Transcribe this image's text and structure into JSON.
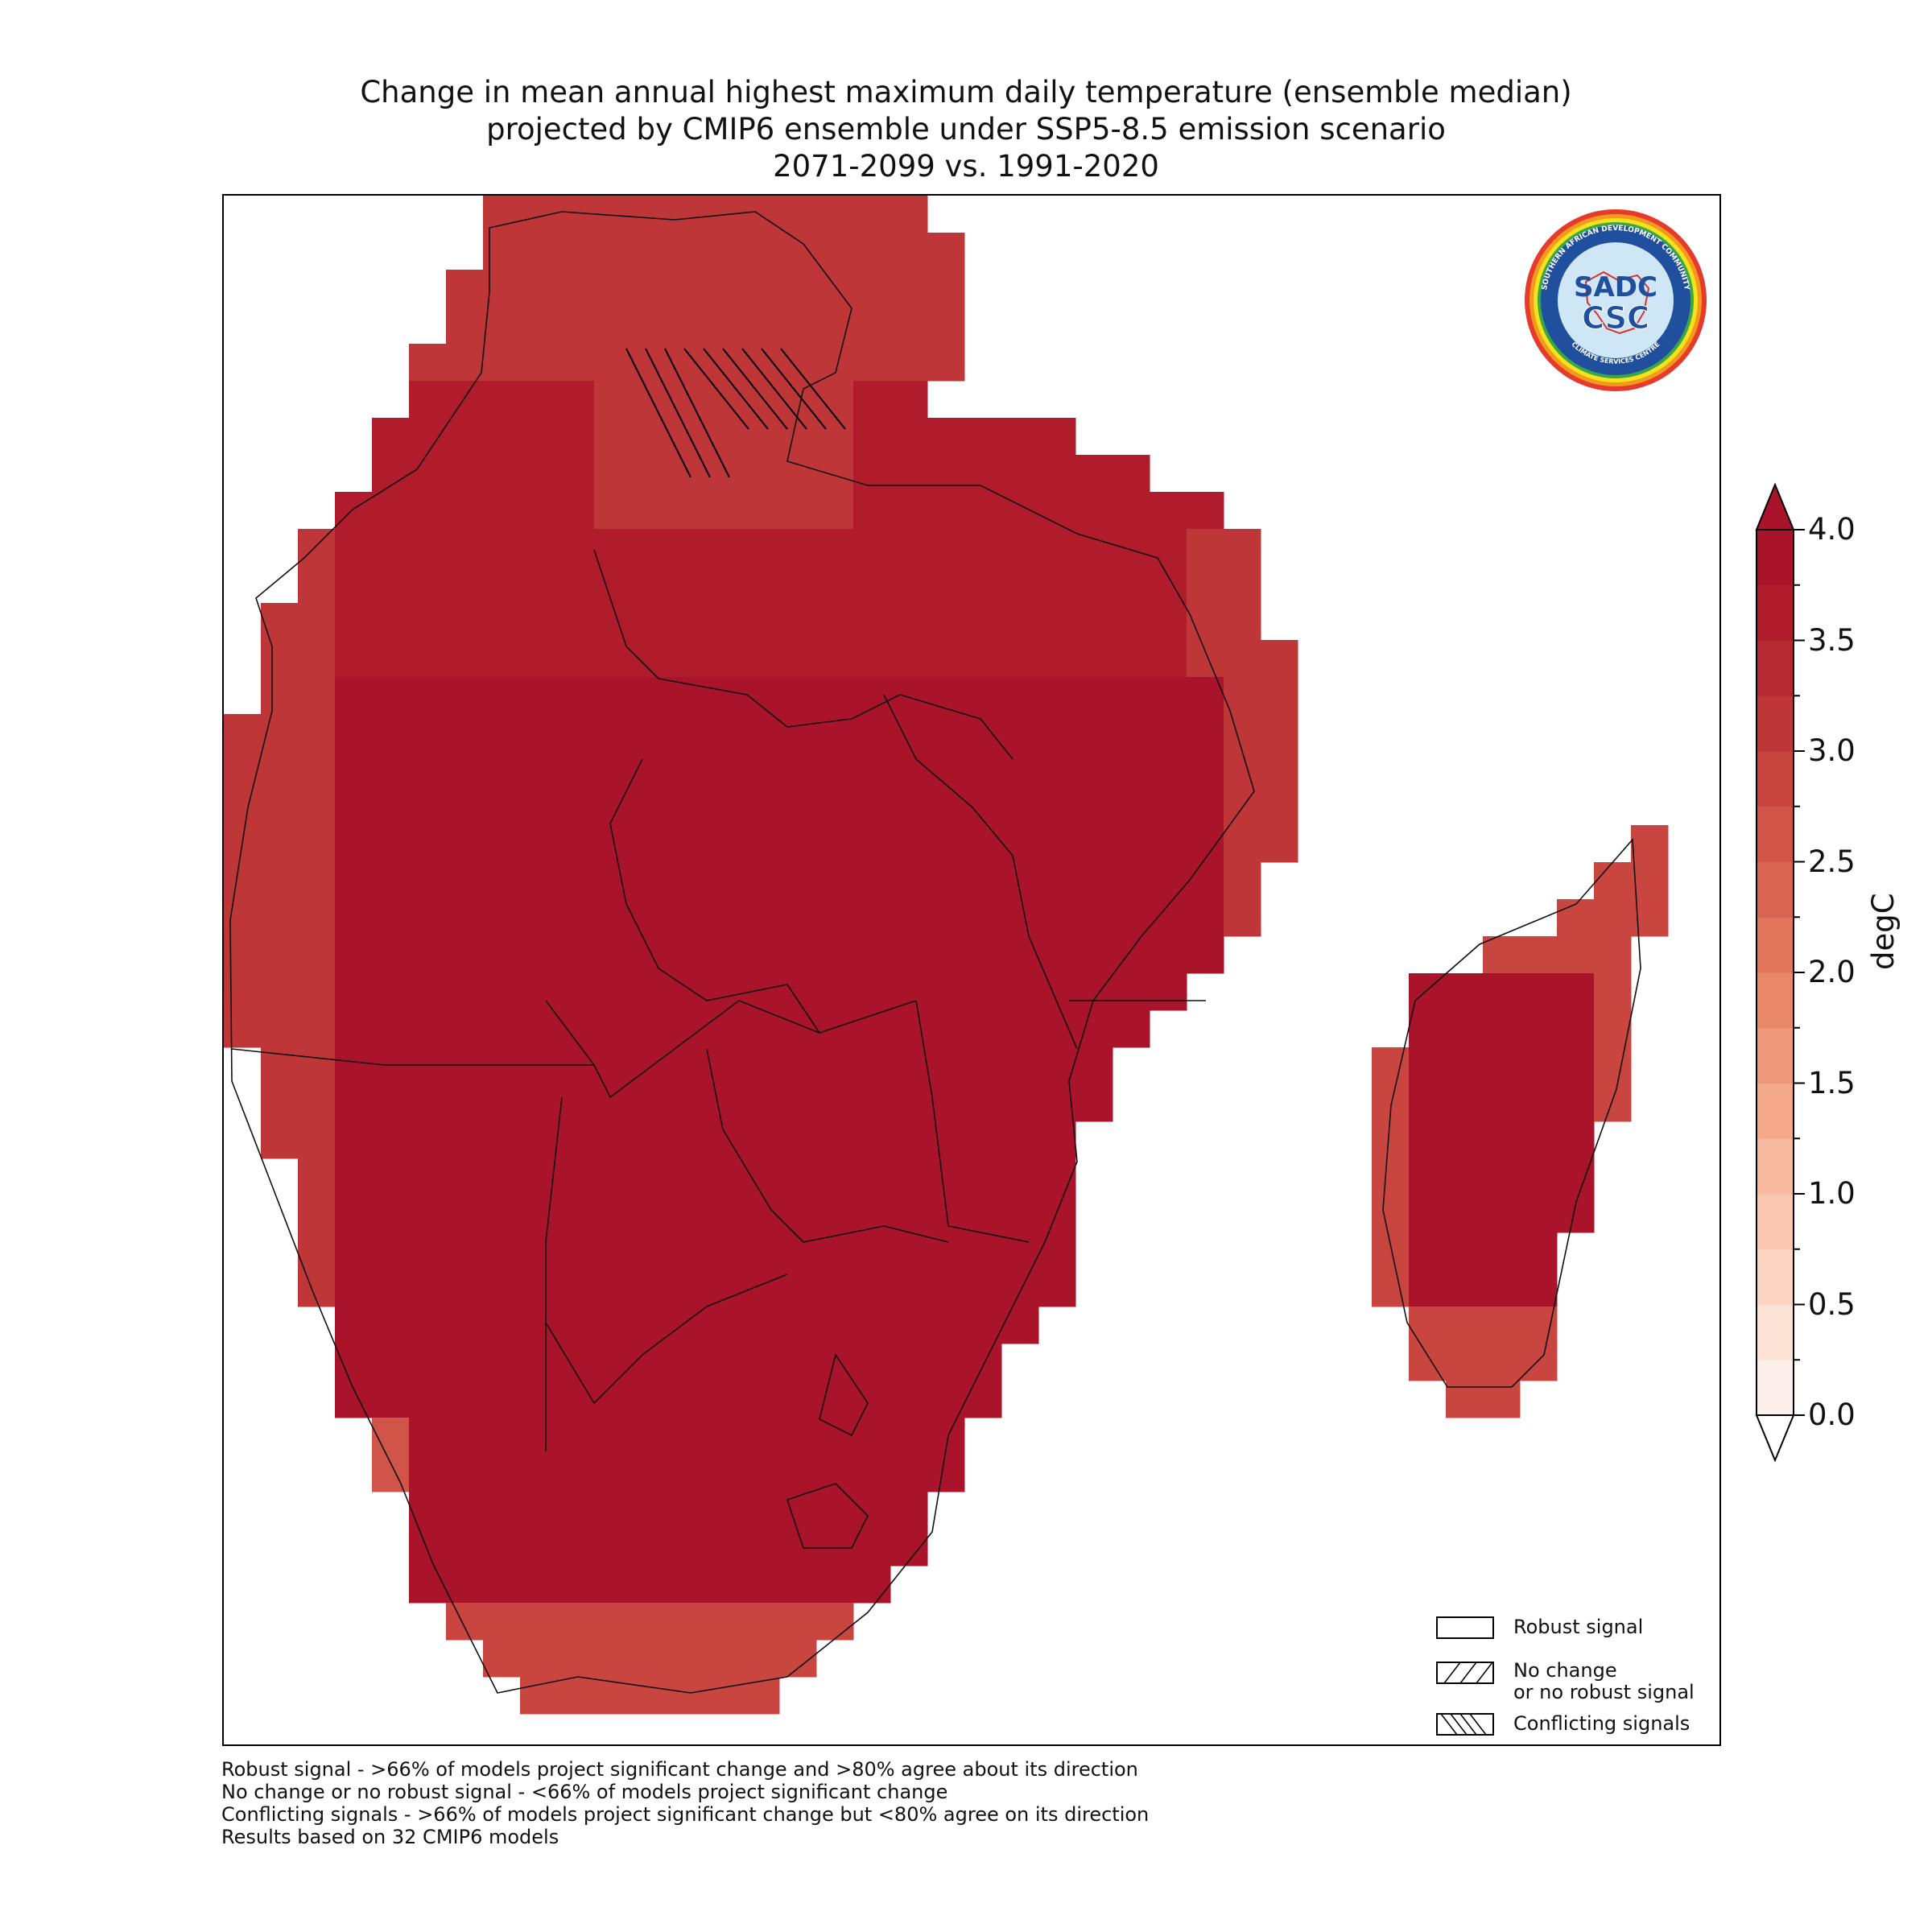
{
  "title": {
    "line1": "Change in mean annual highest maximum daily temperature (ensemble median)",
    "line2": "projected by CMIP6 ensemble under SSP5-8.5 emission scenario",
    "line3": "2071-2099 vs. 1991-2020"
  },
  "logo": {
    "ring_text": "SOUTHERN AFRICAN DEVELOPMENT COMMUNITY",
    "bottom_text": "CLIMATE SERVICES CENTRE",
    "mark_top": "SADC",
    "mark_bottom": "CSC"
  },
  "legend": {
    "robust": "Robust signal",
    "no_change": "No change\nor no robust signal",
    "conflicting": "Conflicting signals"
  },
  "colorbar": {
    "unit": "degC",
    "ticks": [
      "0.0",
      "0.5",
      "1.0",
      "1.5",
      "2.0",
      "2.5",
      "3.0",
      "3.5",
      "4.0"
    ],
    "min": 0,
    "max": 4,
    "step": 0.25,
    "colors": [
      "#fdf0ea",
      "#fce3d6",
      "#fbd5c2",
      "#fac8b0",
      "#f8ba9e",
      "#f5a98b",
      "#ef9879",
      "#e98769",
      "#e2765c",
      "#da6452",
      "#d15449",
      "#c84540",
      "#be3637",
      "#b62832",
      "#b01c2b",
      "#a9142b"
    ]
  },
  "footnotes": [
    "Robust signal - >66% of models project significant change and >80% agree about its direction",
    "No change or no robust signal - <66% of models project significant change",
    "Conflicting signals - >66% of models project significant change but <80% agree on its direction",
    "Results based on 32 CMIP6 models"
  ],
  "map_data": {
    "variable": "Change in mean annual highest maximum daily temperature",
    "unit": "degC",
    "region": "Southern Africa and Madagascar",
    "value_range": [
      0,
      4
    ],
    "hatched_area": "conflicting signals over part of central Democratic Republic of the Congo"
  },
  "colors": {
    "max_red": "#af1a2a",
    "light_red": "#d2554a",
    "border": "#000000"
  }
}
